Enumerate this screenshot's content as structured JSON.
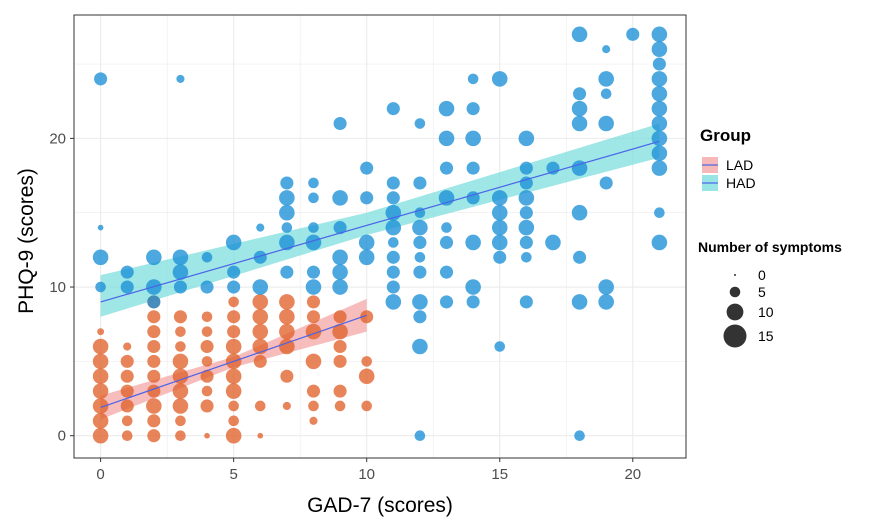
{
  "chart_data": {
    "type": "scatter",
    "title": "",
    "xlabel": "GAD-7 (scores)",
    "ylabel": "PHQ-9 (scores)",
    "xlim": [
      -1.0,
      22.0
    ],
    "ylim": [
      -1.5,
      28.3
    ],
    "x_ticks": [
      0,
      5,
      10,
      15,
      20
    ],
    "y_ticks": [
      0,
      10,
      20
    ],
    "grid": true,
    "legend_group": {
      "title": "Group",
      "entries": [
        {
          "name": "LAD",
          "color": "#e0622b",
          "band_color": "#f4a6a6"
        },
        {
          "name": "HAD",
          "color": "#1a8fd6",
          "band_color": "#7fdede"
        }
      ]
    },
    "legend_size": {
      "title": "Number of symptoms",
      "entries": [
        {
          "label": "0",
          "value": 0
        },
        {
          "label": "5",
          "value": 5
        },
        {
          "label": "10",
          "value": 10
        },
        {
          "label": "15",
          "value": 15
        }
      ]
    },
    "series": [
      {
        "name": "LAD",
        "color": "#e0622b",
        "fit": {
          "x": [
            0,
            10
          ],
          "y": [
            1.9,
            8.1
          ],
          "band": [
            [
              0,
              1.1,
              2.7
            ],
            [
              5,
              4.6,
              5.3
            ],
            [
              10,
              7.0,
              9.2
            ]
          ]
        },
        "points": [
          [
            0,
            0,
            9
          ],
          [
            0,
            1,
            9
          ],
          [
            0,
            2,
            9
          ],
          [
            0,
            3,
            9
          ],
          [
            0,
            4,
            9
          ],
          [
            0,
            5,
            9
          ],
          [
            0,
            6,
            9
          ],
          [
            0,
            7,
            2
          ],
          [
            1,
            1,
            5
          ],
          [
            1,
            2,
            7
          ],
          [
            1,
            3,
            7
          ],
          [
            1,
            4,
            7
          ],
          [
            1,
            5,
            7
          ],
          [
            1,
            6,
            3
          ],
          [
            1,
            0,
            5
          ],
          [
            2,
            0,
            7
          ],
          [
            2,
            1,
            7
          ],
          [
            2,
            2,
            9
          ],
          [
            2,
            3,
            7
          ],
          [
            2,
            4,
            7
          ],
          [
            2,
            5,
            7
          ],
          [
            2,
            6,
            7
          ],
          [
            2,
            7,
            7
          ],
          [
            2,
            8,
            7
          ],
          [
            2,
            9,
            7
          ],
          [
            3,
            0,
            5
          ],
          [
            3,
            1,
            5
          ],
          [
            3,
            2,
            9
          ],
          [
            3,
            3,
            9
          ],
          [
            3,
            4,
            9
          ],
          [
            3,
            5,
            9
          ],
          [
            3,
            6,
            5
          ],
          [
            3,
            7,
            5
          ],
          [
            3,
            8,
            7
          ],
          [
            4,
            0,
            1
          ],
          [
            4,
            2,
            7
          ],
          [
            4,
            3,
            5
          ],
          [
            4,
            4,
            7
          ],
          [
            4,
            5,
            5
          ],
          [
            4,
            6,
            7
          ],
          [
            4,
            7,
            5
          ],
          [
            4,
            8,
            5
          ],
          [
            5,
            0,
            9
          ],
          [
            5,
            1,
            5
          ],
          [
            5,
            2,
            5
          ],
          [
            5,
            3,
            9
          ],
          [
            5,
            4,
            9
          ],
          [
            5,
            5,
            9
          ],
          [
            5,
            6,
            9
          ],
          [
            5,
            7,
            7
          ],
          [
            5,
            8,
            7
          ],
          [
            5,
            9,
            5
          ],
          [
            6,
            0,
            1
          ],
          [
            6,
            2,
            5
          ],
          [
            6,
            5,
            7
          ],
          [
            6,
            6,
            9
          ],
          [
            6,
            7,
            9
          ],
          [
            6,
            8,
            9
          ],
          [
            6,
            9,
            9
          ],
          [
            7,
            2,
            3
          ],
          [
            7,
            4,
            7
          ],
          [
            7,
            6,
            9
          ],
          [
            7,
            7,
            9
          ],
          [
            7,
            8,
            9
          ],
          [
            7,
            9,
            9
          ],
          [
            8,
            1,
            3
          ],
          [
            8,
            2,
            5
          ],
          [
            8,
            3,
            7
          ],
          [
            8,
            5,
            9
          ],
          [
            8,
            7,
            9
          ],
          [
            8,
            8,
            7
          ],
          [
            8,
            9,
            7
          ],
          [
            9,
            2,
            5
          ],
          [
            9,
            3,
            7
          ],
          [
            9,
            5,
            7
          ],
          [
            9,
            6,
            7
          ],
          [
            9,
            7,
            9
          ],
          [
            9,
            8,
            7
          ],
          [
            10,
            2,
            5
          ],
          [
            10,
            4,
            9
          ],
          [
            10,
            5,
            5
          ],
          [
            10,
            8,
            7
          ]
        ]
      },
      {
        "name": "HAD",
        "color": "#1a8fd6",
        "fit": {
          "x": [
            0,
            21
          ],
          "y": [
            9.0,
            19.8
          ],
          "band": [
            [
              0,
              8.0,
              10.8
            ],
            [
              10,
              13.5,
              15.0
            ],
            [
              21,
              18.7,
              21.0
            ]
          ]
        },
        "points": [
          [
            0,
            10,
            5
          ],
          [
            0,
            12,
            9
          ],
          [
            0,
            14,
            1
          ],
          [
            0,
            24,
            7
          ],
          [
            1,
            10,
            7
          ],
          [
            1,
            11,
            7
          ],
          [
            2,
            9,
            7
          ],
          [
            2,
            10,
            9
          ],
          [
            2,
            12,
            9
          ],
          [
            3,
            10,
            7
          ],
          [
            3,
            11,
            9
          ],
          [
            3,
            12,
            9
          ],
          [
            3,
            24,
            3
          ],
          [
            4,
            10,
            7
          ],
          [
            4,
            12,
            5
          ],
          [
            5,
            10,
            7
          ],
          [
            5,
            11,
            7
          ],
          [
            5,
            13,
            9
          ],
          [
            6,
            10,
            9
          ],
          [
            6,
            12,
            7
          ],
          [
            6,
            14,
            3
          ],
          [
            7,
            11,
            7
          ],
          [
            7,
            13,
            9
          ],
          [
            7,
            14,
            5
          ],
          [
            7,
            15,
            9
          ],
          [
            7,
            16,
            9
          ],
          [
            7,
            17,
            7
          ],
          [
            8,
            10,
            9
          ],
          [
            8,
            11,
            7
          ],
          [
            8,
            13,
            9
          ],
          [
            8,
            14,
            5
          ],
          [
            8,
            16,
            5
          ],
          [
            8,
            17,
            5
          ],
          [
            9,
            10,
            9
          ],
          [
            9,
            11,
            9
          ],
          [
            9,
            12,
            9
          ],
          [
            9,
            14,
            7
          ],
          [
            9,
            16,
            9
          ],
          [
            9,
            21,
            7
          ],
          [
            10,
            12,
            9
          ],
          [
            10,
            13,
            9
          ],
          [
            10,
            16,
            7
          ],
          [
            10,
            18,
            7
          ],
          [
            11,
            9,
            9
          ],
          [
            11,
            10,
            7
          ],
          [
            11,
            11,
            7
          ],
          [
            11,
            12,
            7
          ],
          [
            11,
            13,
            5
          ],
          [
            11,
            14,
            9
          ],
          [
            11,
            15,
            9
          ],
          [
            11,
            16,
            7
          ],
          [
            11,
            17,
            7
          ],
          [
            11,
            22,
            7
          ],
          [
            12,
            0,
            5
          ],
          [
            12,
            6,
            9
          ],
          [
            12,
            8,
            7
          ],
          [
            12,
            9,
            9
          ],
          [
            12,
            11,
            7
          ],
          [
            12,
            12,
            5
          ],
          [
            12,
            13,
            7
          ],
          [
            12,
            14,
            9
          ],
          [
            12,
            15,
            5
          ],
          [
            12,
            17,
            7
          ],
          [
            12,
            21,
            5
          ],
          [
            13,
            9,
            7
          ],
          [
            13,
            11,
            7
          ],
          [
            13,
            13,
            7
          ],
          [
            13,
            14,
            5
          ],
          [
            13,
            16,
            9
          ],
          [
            13,
            18,
            7
          ],
          [
            13,
            20,
            9
          ],
          [
            13,
            22,
            9
          ],
          [
            14,
            9,
            7
          ],
          [
            14,
            10,
            9
          ],
          [
            14,
            13,
            9
          ],
          [
            14,
            16,
            7
          ],
          [
            14,
            18,
            7
          ],
          [
            14,
            20,
            9
          ],
          [
            14,
            22,
            7
          ],
          [
            14,
            24,
            5
          ],
          [
            15,
            6,
            5
          ],
          [
            15,
            12,
            7
          ],
          [
            15,
            13,
            9
          ],
          [
            15,
            14,
            9
          ],
          [
            15,
            15,
            9
          ],
          [
            15,
            16,
            9
          ],
          [
            15,
            24,
            9
          ],
          [
            16,
            9,
            7
          ],
          [
            16,
            12,
            5
          ],
          [
            16,
            13,
            7
          ],
          [
            16,
            14,
            9
          ],
          [
            16,
            15,
            7
          ],
          [
            16,
            16,
            9
          ],
          [
            16,
            17,
            7
          ],
          [
            16,
            18,
            7
          ],
          [
            16,
            20,
            9
          ],
          [
            17,
            13,
            9
          ],
          [
            17,
            18,
            7
          ],
          [
            18,
            0,
            5
          ],
          [
            18,
            9,
            9
          ],
          [
            18,
            12,
            7
          ],
          [
            18,
            15,
            9
          ],
          [
            18,
            18,
            9
          ],
          [
            18,
            21,
            9
          ],
          [
            18,
            22,
            9
          ],
          [
            18,
            23,
            7
          ],
          [
            18,
            27,
            9
          ],
          [
            19,
            9,
            9
          ],
          [
            19,
            10,
            9
          ],
          [
            19,
            17,
            7
          ],
          [
            19,
            21,
            9
          ],
          [
            19,
            23,
            5
          ],
          [
            19,
            24,
            9
          ],
          [
            19,
            26,
            3
          ],
          [
            20,
            27,
            7
          ],
          [
            21,
            13,
            9
          ],
          [
            21,
            15,
            5
          ],
          [
            21,
            18,
            9
          ],
          [
            21,
            19,
            9
          ],
          [
            21,
            20,
            9
          ],
          [
            21,
            21,
            9
          ],
          [
            21,
            22,
            9
          ],
          [
            21,
            23,
            9
          ],
          [
            21,
            24,
            9
          ],
          [
            21,
            25,
            7
          ],
          [
            21,
            26,
            9
          ],
          [
            21,
            27,
            9
          ]
        ]
      }
    ]
  }
}
